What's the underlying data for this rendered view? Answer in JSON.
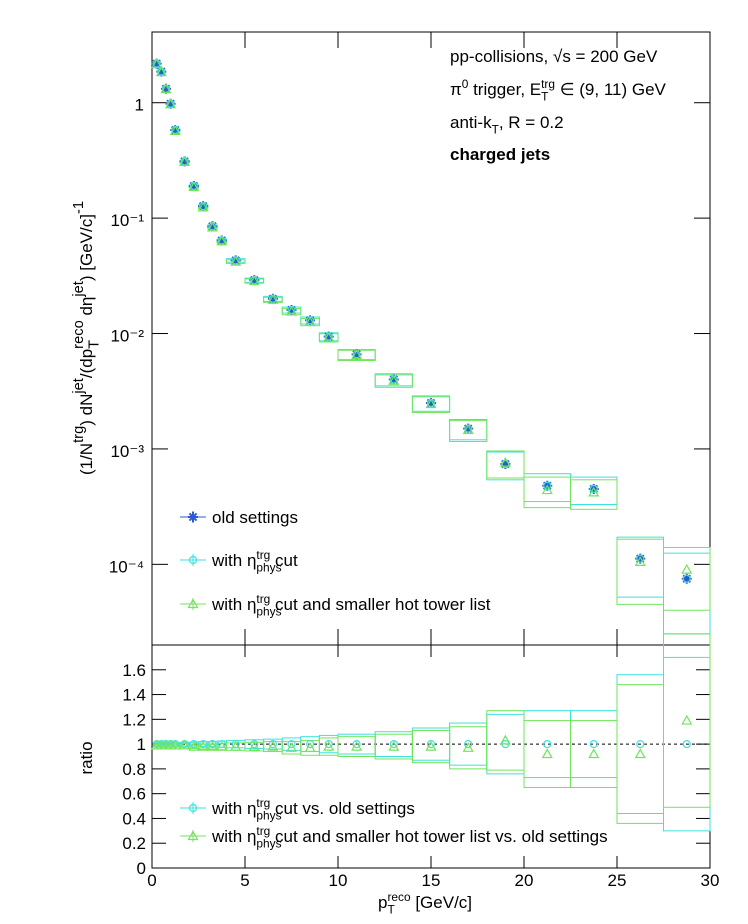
{
  "chart_data": {
    "type": "scatter",
    "annotations": [
      {
        "parts": [
          "pp-collisions, √s = 200 GeV"
        ]
      },
      {
        "parts": [
          "π",
          "0",
          " trigger, E",
          "T",
          "trg",
          " ∈ (9, 11) GeV"
        ]
      },
      {
        "parts": [
          "anti-k",
          "T",
          ", R = 0.2"
        ]
      },
      {
        "parts": [
          "charged jets"
        ]
      }
    ],
    "ylabel": {
      "parts": [
        "(1/N",
        "trg",
        ") dN",
        "jet",
        "/(dp",
        "T",
        "reco",
        " dη",
        "jet",
        ") [GeV/c]",
        "-1"
      ]
    },
    "ratio_ylabel": "ratio",
    "xlabel": {
      "parts": [
        "p",
        "T",
        "reco",
        " [GeV/c]"
      ]
    },
    "x": [
      0.25,
      0.5,
      0.75,
      1.0,
      1.25,
      1.75,
      2.25,
      2.75,
      3.25,
      3.75,
      4.5,
      5.5,
      6.5,
      7.5,
      8.5,
      9.5,
      11,
      13,
      15,
      17,
      19,
      21.25,
      23.75,
      26.25,
      28.75
    ],
    "bin_edges": [
      0.125,
      0.375,
      0.625,
      0.875,
      1.125,
      1.5,
      2,
      2.5,
      3,
      3.5,
      4,
      5,
      6,
      7,
      8,
      9,
      10,
      12,
      14,
      16,
      18,
      20,
      22.5,
      25,
      27.5,
      30
    ],
    "xlim": [
      0,
      30
    ],
    "xticks": [
      0,
      5,
      10,
      15,
      20,
      25,
      30
    ],
    "log_y": true,
    "ylim": [
      2e-05,
      4.1
    ],
    "yticks": [
      {
        "value": 0.0001,
        "label": "10⁻⁴"
      },
      {
        "value": 0.001,
        "label": "10⁻³"
      },
      {
        "value": 0.01,
        "label": "10⁻²"
      },
      {
        "value": 0.1,
        "label": "10⁻¹"
      },
      1
    ],
    "series": [
      {
        "name": "old settings",
        "color": "#2a5bd0",
        "marker": "star",
        "values": [
          2.18,
          1.86,
          1.32,
          0.98,
          0.58,
          0.31,
          0.19,
          0.127,
          0.085,
          0.064,
          0.043,
          0.029,
          0.02,
          0.016,
          0.013,
          0.0094,
          0.0066,
          0.004,
          0.0025,
          0.0015,
          0.00074,
          0.00048,
          0.00045,
          0.000112,
          7.5e-05
        ]
      },
      {
        "name": {
          "parts": [
            "with η",
            "phys",
            "trg",
            " cut"
          ]
        },
        "color": "#3ee0e0",
        "marker": "circle",
        "values": [
          2.18,
          1.86,
          1.32,
          0.98,
          0.58,
          0.31,
          0.19,
          0.127,
          0.085,
          0.064,
          0.043,
          0.029,
          0.02,
          0.016,
          0.013,
          0.0094,
          0.0066,
          0.004,
          0.0025,
          0.0015,
          0.00074,
          0.00048,
          0.00045,
          0.000112,
          7.5e-05
        ],
        "errors": [
          0.044,
          0.037,
          0.026,
          0.02,
          0.012,
          0.0062,
          0.0038,
          0.0032,
          0.0021,
          0.0019,
          0.0015,
          0.0012,
          0.001,
          0.00096,
          0.00091,
          0.00075,
          0.00066,
          0.00048,
          0.00038,
          0.0003,
          0.0002,
          0.00013,
          0.00012,
          6e-05,
          5e-05
        ]
      },
      {
        "name": {
          "parts": [
            "with η",
            "phys",
            "trg",
            " cut and smaller hot tower list"
          ]
        },
        "color": "#6fe65a",
        "marker": "triangle",
        "values": [
          2.16,
          1.84,
          1.31,
          0.97,
          0.57,
          0.307,
          0.186,
          0.124,
          0.083,
          0.063,
          0.042,
          0.0285,
          0.0196,
          0.0155,
          0.0126,
          0.0092,
          0.0065,
          0.0039,
          0.00245,
          0.00146,
          0.00076,
          0.00044,
          0.00042,
          0.000105,
          9e-05
        ],
        "errors": [
          0.044,
          0.037,
          0.026,
          0.02,
          0.012,
          0.0062,
          0.0038,
          0.0032,
          0.0021,
          0.0019,
          0.0015,
          0.0012,
          0.001,
          0.00096,
          0.00091,
          0.00075,
          0.00066,
          0.00048,
          0.00038,
          0.0003,
          0.0002,
          0.00013,
          0.00012,
          6e-05,
          5e-05
        ]
      }
    ],
    "ratio_ylim": [
      0,
      1.8
    ],
    "ratio_yticks": [
      0,
      0.2,
      0.4,
      0.6,
      0.8,
      1,
      1.2,
      1.4,
      1.6
    ],
    "ratio_reference": 1,
    "ratio_series": [
      {
        "name": {
          "parts": [
            "with η",
            "phys",
            "trg",
            " cut vs. old settings"
          ]
        },
        "color": "#3ee0e0",
        "marker": "circle",
        "values": [
          1,
          1,
          1,
          1,
          1,
          1,
          1,
          1,
          1,
          1,
          1,
          1,
          1,
          1,
          1,
          1,
          1,
          1,
          1,
          1,
          1,
          1,
          1,
          1,
          1
        ],
        "errors": [
          0.01,
          0.01,
          0.01,
          0.01,
          0.01,
          0.015,
          0.015,
          0.02,
          0.02,
          0.025,
          0.03,
          0.035,
          0.04,
          0.05,
          0.06,
          0.07,
          0.08,
          0.1,
          0.13,
          0.17,
          0.24,
          0.27,
          0.27,
          0.56,
          0.7
        ]
      },
      {
        "name": {
          "parts": [
            "with η",
            "phys",
            "trg",
            " cut and smaller hot tower list vs. old settings"
          ]
        },
        "color": "#6fe65a",
        "marker": "triangle",
        "values": [
          0.99,
          0.99,
          0.99,
          0.99,
          0.99,
          0.99,
          0.98,
          0.98,
          0.98,
          0.98,
          0.98,
          0.98,
          0.98,
          0.97,
          0.97,
          0.98,
          0.98,
          0.98,
          0.98,
          0.97,
          1.03,
          0.92,
          0.92,
          0.92,
          1.19
        ],
        "errors": [
          0.01,
          0.01,
          0.01,
          0.01,
          0.01,
          0.015,
          0.015,
          0.02,
          0.02,
          0.025,
          0.03,
          0.035,
          0.04,
          0.05,
          0.06,
          0.07,
          0.08,
          0.1,
          0.13,
          0.17,
          0.24,
          0.27,
          0.27,
          0.56,
          0.7
        ]
      }
    ]
  }
}
